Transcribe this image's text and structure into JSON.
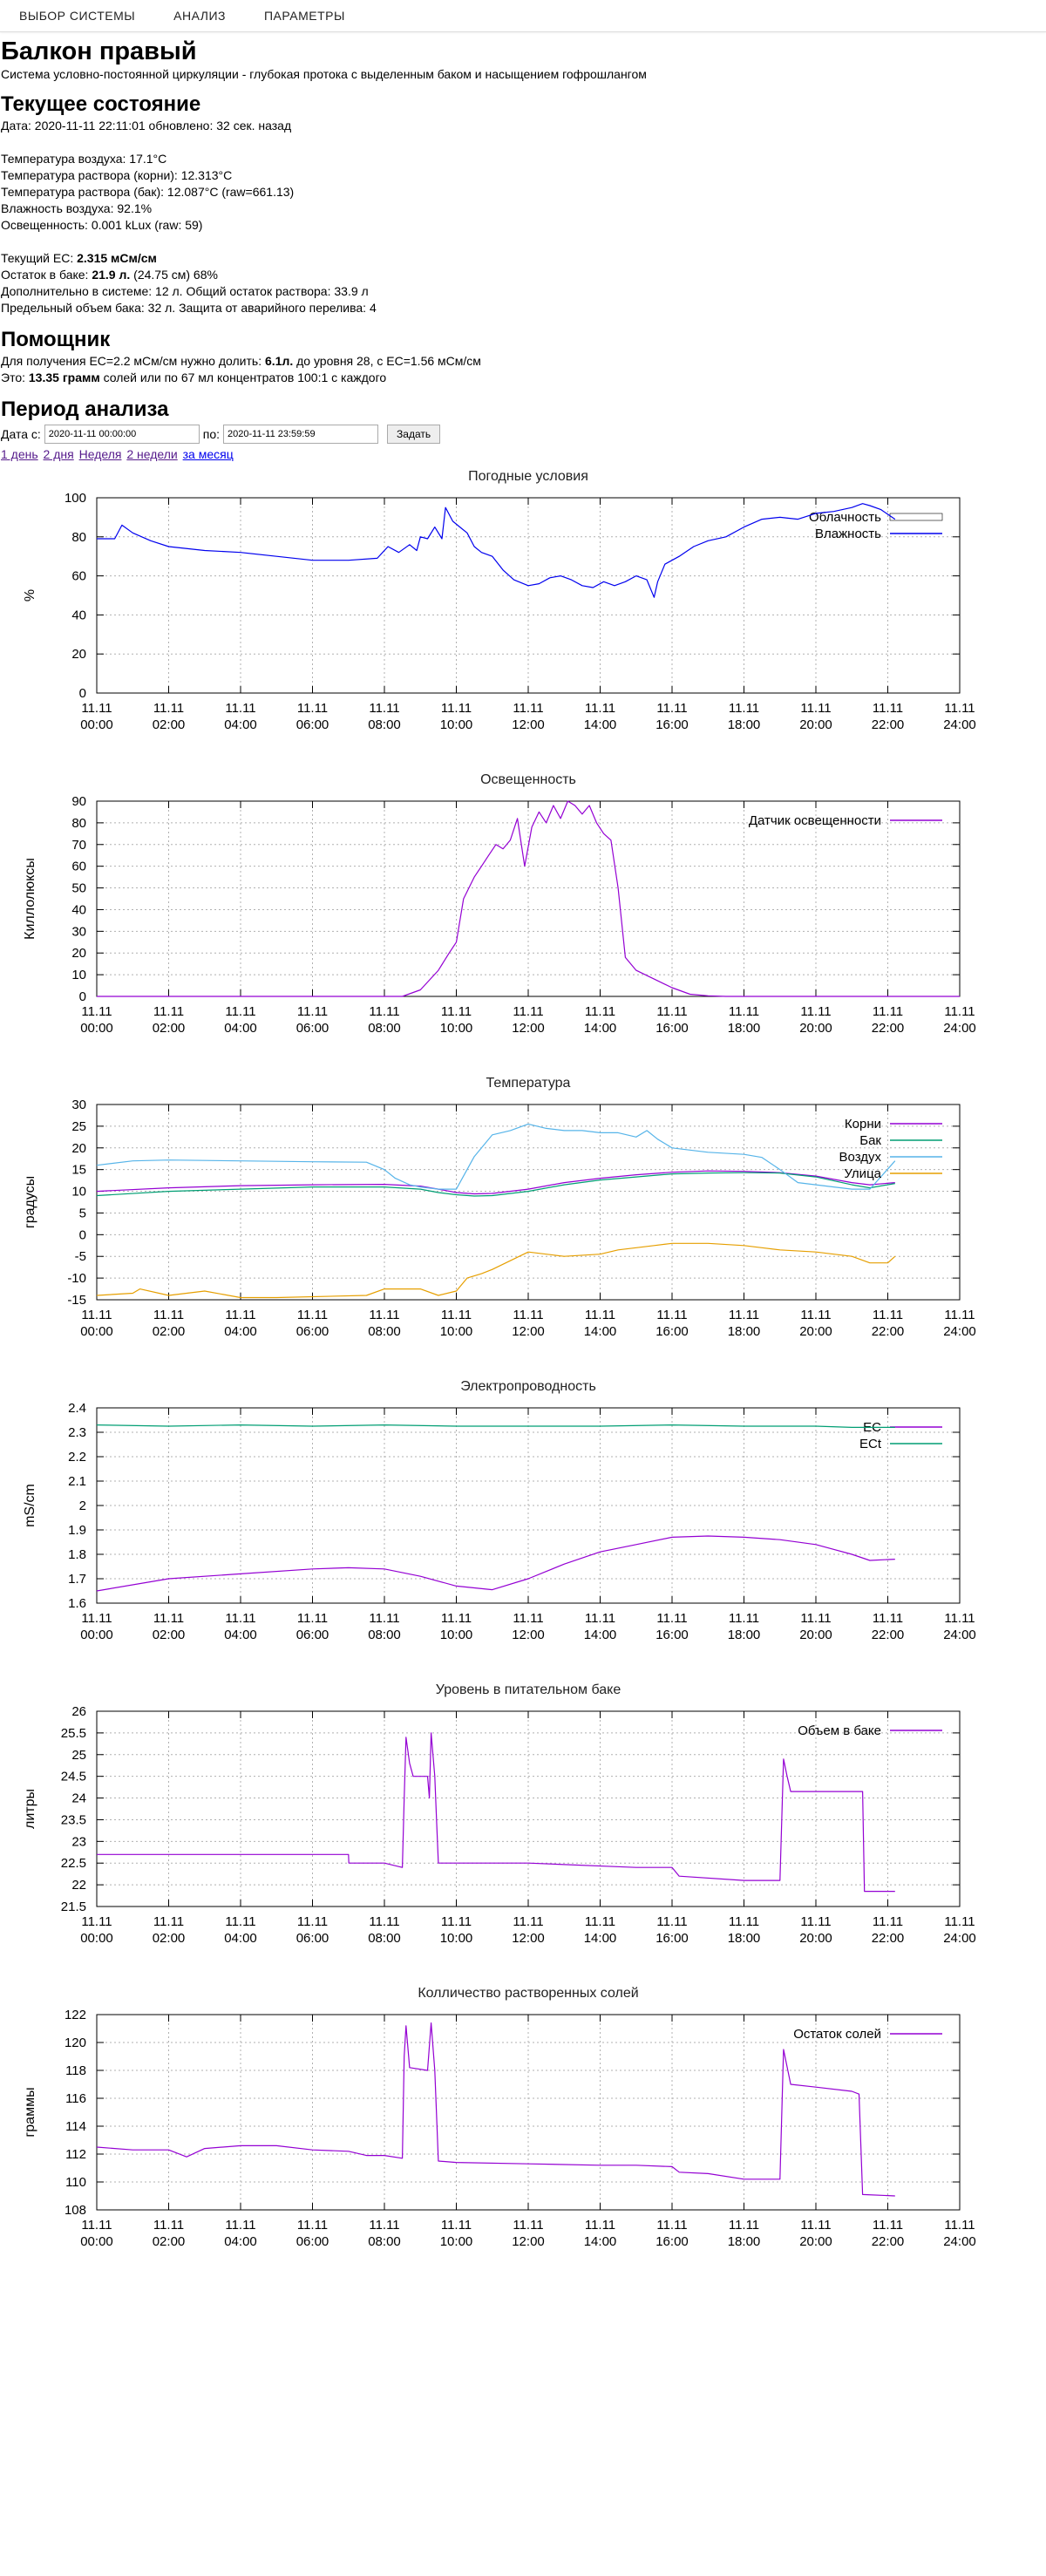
{
  "nav": {
    "items": [
      "ВЫБОР СИСТЕМЫ",
      "АНАЛИЗ",
      "ПАРАМЕТРЫ"
    ]
  },
  "header": {
    "title": "Балкон правый",
    "subtitle": "Система условно-постоянной циркуляции - глубокая протока с выделенным баком и насыщением гофрошлангом"
  },
  "state": {
    "heading": "Текущее состояние",
    "date_line": "Дата: 2020-11-11 22:11:01 обновлено: 32 сек. назад",
    "air_temp": "Температура воздуха: 17.1°C",
    "root_temp": "Температура раствора (корни): 12.313°C",
    "tank_temp": "Температура раствора (бак): 12.087°C (raw=661.13)",
    "humidity": "Влажность воздуха: 92.1%",
    "lux": "Освещенность: 0.001 kLux (raw: 59)",
    "ec_prefix": "Текущий EC: ",
    "ec_value": "2.315 мСм/см",
    "rest_prefix": "Остаток в баке: ",
    "rest_value": "21.9 л.",
    "rest_suffix": " (24.75 см) 68%",
    "extra": "Дополнительно в системе: 12 л. Общий остаток раствора: 33.9 л",
    "limit": "Предельный объем бака: 32 л. Защита от аварийного перелива: 4"
  },
  "helper": {
    "heading": "Помощник",
    "line1_prefix": "Для получения EC=2.2 мСм/см нужно долить: ",
    "line1_bold": "6.1л.",
    "line1_suffix": " до уровня 28, с EC=1.56 мСм/см",
    "line2_prefix": "Это: ",
    "line2_bold": "13.35 грамм",
    "line2_suffix": " солей или по 67 мл концентратов 100:1 с каждого"
  },
  "period": {
    "heading": "Период анализа",
    "from_label": "Дата с:",
    "from_value": "2020-11-11 00:00:00",
    "to_label": "по:",
    "to_value": "2020-11-11 23:59:59",
    "submit_label": "Задать",
    "links": [
      "1 день",
      "2 дня",
      "Неделя",
      "2 недели",
      "за месяц"
    ]
  },
  "chart_data": [
    {
      "type": "line",
      "title": "Погодные условия",
      "ylabel": "%",
      "ylim": [
        0,
        100
      ],
      "yticks": [
        0,
        20,
        40,
        60,
        80,
        100
      ],
      "xlabels": [
        "11.11\n00:00",
        "11.11\n02:00",
        "11.11\n04:00",
        "11.11\n06:00",
        "11.11\n08:00",
        "11.11\n10:00",
        "11.11\n12:00",
        "11.11\n14:00",
        "11.11\n16:00",
        "11.11\n18:00",
        "11.11\n20:00",
        "11.11\n22:00",
        "11.11\n24:00"
      ],
      "xlim": [
        0,
        24
      ],
      "grid": true,
      "legend": "top-right",
      "series": [
        {
          "name": "Облачность",
          "color": "#ffffff",
          "x": [],
          "y": []
        },
        {
          "name": "Влажность",
          "color": "#0000ee",
          "x": [
            0,
            0.5,
            0.7,
            1,
            1.5,
            2,
            3,
            4,
            5,
            6,
            7,
            7.8,
            8.1,
            8.4,
            8.7,
            8.9,
            9.0,
            9.2,
            9.4,
            9.6,
            9.7,
            9.9,
            10.1,
            10.3,
            10.5,
            10.7,
            11,
            11.3,
            11.6,
            12,
            12.3,
            12.6,
            12.9,
            13.2,
            13.5,
            13.8,
            14.1,
            14.4,
            14.7,
            15,
            15.3,
            15.5,
            15.6,
            15.8,
            16.2,
            16.6,
            17,
            17.5,
            18,
            18.5,
            19,
            19.5,
            20,
            20.5,
            21,
            21.3,
            21.5,
            21.8,
            22.2
          ],
          "y": [
            79,
            79,
            86,
            82,
            78,
            75,
            73,
            72,
            70,
            68,
            68,
            69,
            75,
            72,
            76,
            73,
            80,
            79,
            85,
            79,
            95,
            88,
            85,
            82,
            75,
            72,
            70,
            63,
            58,
            55,
            56,
            59,
            60,
            58,
            55,
            54,
            57,
            55,
            57,
            60,
            58,
            49,
            57,
            66,
            70,
            75,
            78,
            80,
            85,
            89,
            90,
            89,
            92,
            93,
            95,
            97,
            96,
            94,
            89
          ]
        }
      ]
    },
    {
      "type": "line",
      "title": "Освещенность",
      "ylabel": "Киллолюксы",
      "ylim": [
        0,
        90
      ],
      "yticks": [
        0,
        10,
        20,
        30,
        40,
        50,
        60,
        70,
        80,
        90
      ],
      "xlabels": [
        "11.11\n00:00",
        "11.11\n02:00",
        "11.11\n04:00",
        "11.11\n06:00",
        "11.11\n08:00",
        "11.11\n10:00",
        "11.11\n12:00",
        "11.11\n14:00",
        "11.11\n16:00",
        "11.11\n18:00",
        "11.11\n20:00",
        "11.11\n22:00",
        "11.11\n24:00"
      ],
      "xlim": [
        0,
        24
      ],
      "grid": true,
      "legend": "top-right",
      "series": [
        {
          "name": "Датчик освещенности",
          "color": "#9400d3",
          "x": [
            0,
            8.5,
            9.0,
            9.5,
            9.8,
            10.0,
            10.2,
            10.5,
            10.7,
            10.9,
            11.1,
            11.3,
            11.5,
            11.7,
            11.9,
            12.1,
            12.3,
            12.5,
            12.7,
            12.9,
            13.1,
            13.3,
            13.5,
            13.7,
            13.9,
            14.1,
            14.3,
            14.5,
            14.7,
            15.0,
            15.5,
            16.0,
            16.5,
            17.0,
            17.5,
            24
          ],
          "y": [
            0,
            0,
            3,
            12,
            20,
            25,
            45,
            55,
            60,
            65,
            70,
            68,
            72,
            82,
            60,
            78,
            85,
            80,
            88,
            82,
            90,
            88,
            84,
            88,
            80,
            75,
            72,
            50,
            18,
            12,
            8,
            4,
            1,
            0.3,
            0,
            0
          ]
        }
      ]
    },
    {
      "type": "line",
      "title": "Температура",
      "ylabel": "градусы",
      "ylim": [
        -15,
        30
      ],
      "yticks": [
        -15,
        -10,
        -5,
        0,
        5,
        10,
        15,
        20,
        25,
        30
      ],
      "xlabels": [
        "11.11\n00:00",
        "11.11\n02:00",
        "11.11\n04:00",
        "11.11\n06:00",
        "11.11\n08:00",
        "11.11\n10:00",
        "11.11\n12:00",
        "11.11\n14:00",
        "11.11\n16:00",
        "11.11\n18:00",
        "11.11\n20:00",
        "11.11\n22:00",
        "11.11\n24:00"
      ],
      "xlim": [
        0,
        24
      ],
      "grid": true,
      "legend": "top-right",
      "series": [
        {
          "name": "Корни",
          "color": "#9400d3",
          "x": [
            0,
            2,
            4,
            6,
            8,
            9,
            9.5,
            10,
            10.5,
            11,
            12,
            13,
            14,
            15,
            16,
            17,
            18,
            19,
            20,
            21,
            21.5,
            22.2
          ],
          "y": [
            10,
            10.8,
            11.3,
            11.5,
            11.6,
            11.2,
            10.5,
            9.7,
            9.4,
            9.5,
            10.5,
            12,
            13,
            13.8,
            14.4,
            14.7,
            14.6,
            14.3,
            13.5,
            12,
            11.5,
            12
          ]
        },
        {
          "name": "Бак",
          "color": "#009e73",
          "x": [
            0,
            2,
            4,
            6,
            8,
            9,
            9.5,
            10,
            10.5,
            11,
            12,
            13,
            14,
            15,
            16,
            17,
            18,
            19,
            20,
            21,
            21.5,
            22.2
          ],
          "y": [
            9,
            10,
            10.5,
            11,
            11,
            10.5,
            9.7,
            9.2,
            8.9,
            9,
            10,
            11.5,
            12.6,
            13.3,
            14,
            14.2,
            14.3,
            14.2,
            13.3,
            11.5,
            10.8,
            11.8
          ]
        },
        {
          "name": "Воздух",
          "color": "#56b4e9",
          "x": [
            0,
            1,
            2,
            4,
            6,
            7.5,
            8,
            8.3,
            8.7,
            9,
            9.5,
            10,
            10.5,
            11,
            11.5,
            12,
            12.5,
            13,
            13.5,
            14,
            14.5,
            15,
            15.3,
            15.6,
            16,
            17,
            18,
            18.5,
            19,
            19.5,
            20,
            20.5,
            21,
            21.5,
            22.2
          ],
          "y": [
            16,
            17,
            17.2,
            17,
            16.8,
            16.7,
            15,
            13,
            11.5,
            11,
            10.5,
            10.5,
            18,
            23,
            24,
            25.5,
            24.5,
            24,
            24,
            23.5,
            23.5,
            22.5,
            24,
            22,
            20,
            19,
            18.5,
            17.8,
            15,
            12,
            11.5,
            11,
            10.5,
            10.5,
            17
          ]
        },
        {
          "name": "Улица",
          "color": "#e69f00",
          "x": [
            0,
            1,
            1.2,
            2,
            3,
            4,
            5,
            7.5,
            8,
            9,
            9.5,
            10,
            10.3,
            10.7,
            11,
            11.5,
            12,
            13,
            14,
            14.5,
            15,
            15.5,
            16,
            17,
            18,
            18.5,
            19,
            20,
            21,
            21.5,
            22,
            22.2
          ],
          "y": [
            -14,
            -13.5,
            -12.5,
            -14,
            -13,
            -14.5,
            -14.5,
            -14,
            -12.5,
            -12.5,
            -14,
            -13,
            -10,
            -9,
            -8,
            -6,
            -4,
            -5,
            -4.5,
            -3.5,
            -3,
            -2.5,
            -2,
            -2,
            -2.5,
            -3,
            -3.5,
            -4,
            -5,
            -6.5,
            -6.5,
            -5
          ]
        }
      ]
    },
    {
      "type": "line",
      "title": "Электропроводность",
      "ylabel": "mS/cm",
      "ylim": [
        1.6,
        2.4
      ],
      "yticks": [
        1.6,
        1.7,
        1.8,
        1.9,
        2,
        2.1,
        2.2,
        2.3,
        2.4
      ],
      "ytickLabels": [
        "1.6",
        "1.7",
        "1.8",
        "1.9",
        "2",
        "2.1",
        "2.2",
        "2.3",
        "2.4"
      ],
      "xlabels": [
        "11.11\n00:00",
        "11.11\n02:00",
        "11.11\n04:00",
        "11.11\n06:00",
        "11.11\n08:00",
        "11.11\n10:00",
        "11.11\n12:00",
        "11.11\n14:00",
        "11.11\n16:00",
        "11.11\n18:00",
        "11.11\n20:00",
        "11.11\n22:00",
        "11.11\n24:00"
      ],
      "xlim": [
        0,
        24
      ],
      "grid": true,
      "legend": "top-right",
      "series": [
        {
          "name": "EC",
          "color": "#9400d3",
          "x": [
            0,
            2,
            4,
            6,
            7,
            8,
            9,
            10,
            11,
            12,
            13,
            14,
            15,
            16,
            17,
            18,
            19,
            20,
            21,
            21.5,
            22.2
          ],
          "y": [
            1.65,
            1.7,
            1.72,
            1.74,
            1.745,
            1.74,
            1.71,
            1.67,
            1.655,
            1.7,
            1.76,
            1.81,
            1.84,
            1.87,
            1.875,
            1.87,
            1.86,
            1.84,
            1.8,
            1.775,
            1.78
          ]
        },
        {
          "name": "ECt",
          "color": "#009e73",
          "x": [
            0,
            2,
            4,
            6,
            8,
            10,
            12,
            14,
            16,
            18,
            20,
            21,
            22.2
          ],
          "y": [
            2.33,
            2.325,
            2.33,
            2.325,
            2.33,
            2.325,
            2.325,
            2.325,
            2.33,
            2.325,
            2.325,
            2.32,
            2.32
          ]
        }
      ]
    },
    {
      "type": "line",
      "title": "Уровень в питательном баке",
      "ylabel": "литры",
      "ylim": [
        21.5,
        26
      ],
      "yticks": [
        21.5,
        22,
        22.5,
        23,
        23.5,
        24,
        24.5,
        25,
        25.5,
        26
      ],
      "xlabels": [
        "11.11\n00:00",
        "11.11\n02:00",
        "11.11\n04:00",
        "11.11\n06:00",
        "11.11\n08:00",
        "11.11\n10:00",
        "11.11\n12:00",
        "11.11\n14:00",
        "11.11\n16:00",
        "11.11\n18:00",
        "11.11\n20:00",
        "11.11\n22:00",
        "11.11\n24:00"
      ],
      "xlim": [
        0,
        24
      ],
      "grid": true,
      "legend": "top-right",
      "series": [
        {
          "name": "Объем в баке",
          "color": "#9400d3",
          "x": [
            0,
            1,
            7,
            7.01,
            8.0,
            8.5,
            8.55,
            8.6,
            8.7,
            8.8,
            9.2,
            9.25,
            9.3,
            9.4,
            9.45,
            9.5,
            10.0,
            12,
            15,
            16,
            16.2,
            18,
            19.0,
            19.1,
            19.2,
            19.3,
            20.0,
            21.3,
            21.35,
            22.2
          ],
          "y": [
            22.7,
            22.7,
            22.7,
            22.5,
            22.5,
            22.4,
            24.0,
            25.4,
            24.8,
            24.5,
            24.5,
            24.0,
            25.5,
            24.5,
            23.5,
            22.5,
            22.5,
            22.5,
            22.4,
            22.4,
            22.2,
            22.1,
            22.1,
            24.9,
            24.5,
            24.15,
            24.15,
            24.15,
            21.85,
            21.85
          ]
        }
      ]
    },
    {
      "type": "line",
      "title": "Колличество растворенных солей",
      "ylabel": "граммы",
      "ylim": [
        108,
        122
      ],
      "yticks": [
        108,
        110,
        112,
        114,
        116,
        118,
        120,
        122
      ],
      "xlabels": [
        "11.11\n00:00",
        "11.11\n02:00",
        "11.11\n04:00",
        "11.11\n06:00",
        "11.11\n08:00",
        "11.11\n10:00",
        "11.11\n12:00",
        "11.11\n14:00",
        "11.11\n16:00",
        "11.11\n18:00",
        "11.11\n20:00",
        "11.11\n22:00",
        "11.11\n24:00"
      ],
      "xlim": [
        0,
        24
      ],
      "grid": true,
      "legend": "top-right",
      "series": [
        {
          "name": "Остаток солей",
          "color": "#9400d3",
          "x": [
            0,
            1,
            2,
            2.5,
            3,
            4,
            5,
            6,
            7,
            7.5,
            8,
            8.5,
            8.55,
            8.6,
            8.7,
            9.2,
            9.3,
            9.4,
            9.5,
            10,
            12,
            14,
            15,
            16,
            16.2,
            17,
            18,
            19,
            19.1,
            19.3,
            20,
            21,
            21.2,
            21.3,
            22.2
          ],
          "y": [
            112.5,
            112.3,
            112.3,
            111.8,
            112.4,
            112.6,
            112.6,
            112.3,
            112.2,
            111.9,
            111.9,
            111.7,
            119,
            121.2,
            118.2,
            118,
            121.4,
            118,
            111.5,
            111.4,
            111.3,
            111.2,
            111.2,
            111.1,
            110.7,
            110.6,
            110.2,
            110.2,
            119.5,
            117,
            116.8,
            116.5,
            116.3,
            109.1,
            109
          ]
        }
      ]
    }
  ]
}
